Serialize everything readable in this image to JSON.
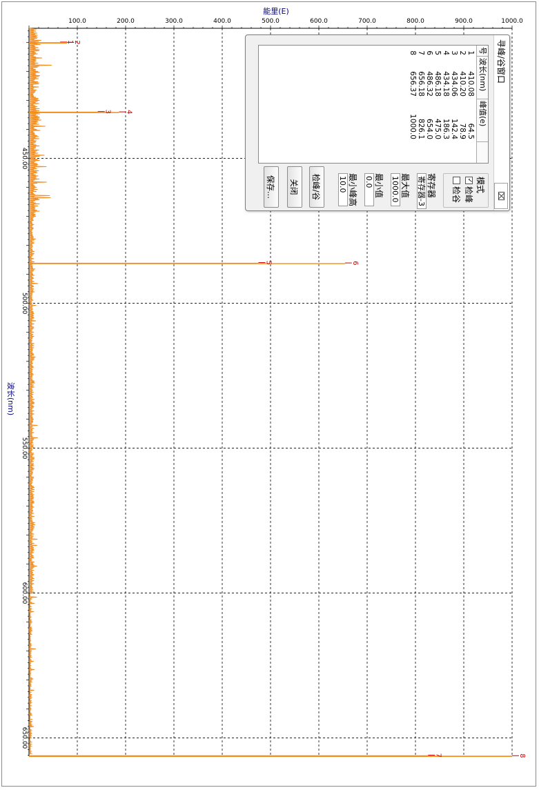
{
  "plot": {
    "top_axis_label": "能里(E)",
    "left_axis_label": "波长(nm)",
    "top_ticks": [
      "100.0",
      "200.0",
      "300.0",
      "400.0",
      "500.0",
      "600.0",
      "700.0",
      "800.0",
      "900.0",
      "1000.0"
    ],
    "left_ticks": [
      "450.00",
      "500.00",
      "550.00",
      "600.00",
      "650.00"
    ],
    "colors": {
      "spectrum": "#f28c1c",
      "marker": "#cc0000",
      "axis_text": "#000080"
    }
  },
  "chart_data": {
    "type": "line",
    "title": "",
    "xlabel": "能里(E)",
    "ylabel": "波长(nm)",
    "orientation": "wavelength on vertical axis, energy on horizontal axis",
    "energy_range": [
      0,
      1000
    ],
    "wavelength_range": [
      404,
      656.5
    ],
    "peaks": [
      {
        "id": "1",
        "wavelength": 410.08,
        "energy": 64.5
      },
      {
        "id": "2",
        "wavelength": 410.2,
        "energy": 78.9
      },
      {
        "id": "3",
        "wavelength": 434.06,
        "energy": 142.4
      },
      {
        "id": "4",
        "wavelength": 434.18,
        "energy": 186.3
      },
      {
        "id": "5",
        "wavelength": 486.18,
        "energy": 475.0
      },
      {
        "id": "6",
        "wavelength": 486.32,
        "energy": 654.0
      },
      {
        "id": "7",
        "wavelength": 656.18,
        "energy": 826.1
      },
      {
        "id": "8",
        "wavelength": 656.37,
        "energy": 1000.0
      }
    ]
  },
  "dialog": {
    "title": "寻峰/谷窗口",
    "close_glyph": "⌧",
    "columns": [
      "号",
      "波长(nm)",
      "峰值(e)"
    ],
    "rows": [
      {
        "n": "1",
        "wl": "410.08",
        "v": "64.5"
      },
      {
        "n": "2",
        "wl": "410.20",
        "v": "78.9"
      },
      {
        "n": "3",
        "wl": "434.06",
        "v": "142.4"
      },
      {
        "n": "4",
        "wl": "434.18",
        "v": "186.3"
      },
      {
        "n": "5",
        "wl": "486.18",
        "v": "475.0"
      },
      {
        "n": "6",
        "wl": "486.32",
        "v": "654.0"
      },
      {
        "n": "7",
        "wl": "656.18",
        "v": "826.1"
      },
      {
        "n": "8",
        "wl": "656.37",
        "v": "1000.0"
      }
    ],
    "mode_label": "模式",
    "peak_option": "检峰",
    "valley_option": "检谷",
    "peak_checked": true,
    "register_label": "寄存器",
    "register_value": "寄存器-3",
    "max_label": "最大值",
    "max_value": "1000.0",
    "min_label": "最小值",
    "min_value": "0.0",
    "min_peak_label": "最小峰高",
    "min_peak_value": "10.0",
    "detect_button": "检峰/谷",
    "close_button": "关闭",
    "save_button": "保存..."
  }
}
